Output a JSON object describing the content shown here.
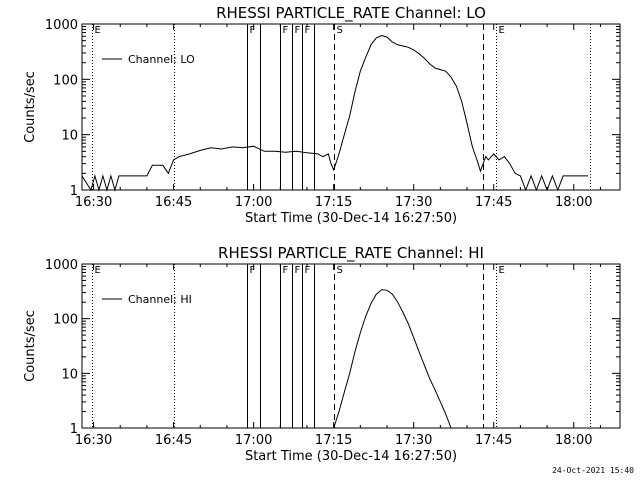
{
  "footer": {
    "generated": "24-Oct-2021 15:40"
  },
  "chart_data": [
    {
      "type": "line",
      "title": "RHESSI PARTICLE_RATE Channel: LO",
      "xlabel": "Start Time (30-Dec-14 16:27:50)",
      "ylabel": "Counts/sec",
      "yscale": "log",
      "xlim": [
        "16:27:50",
        "18:08:40"
      ],
      "ylim": [
        1,
        1000
      ],
      "x_ticks": [
        "16:30",
        "16:45",
        "17:00",
        "17:15",
        "17:30",
        "17:45",
        "18:00"
      ],
      "y_ticks": [
        "1",
        "10",
        "100",
        "1000"
      ],
      "legend": {
        "position": "top-left",
        "entries": [
          "Channel: LO"
        ]
      },
      "markers": [
        {
          "time": "16:29:45",
          "label": "E",
          "style": "dotted"
        },
        {
          "time": "16:45:00",
          "label": "",
          "style": "dotted"
        },
        {
          "time": "16:58:45",
          "label": "F",
          "style": "solid"
        },
        {
          "time": "17:01:15",
          "label": "",
          "style": "solid"
        },
        {
          "time": "17:05:00",
          "label": "F",
          "style": "solid"
        },
        {
          "time": "17:07:15",
          "label": "F",
          "style": "solid"
        },
        {
          "time": "17:09:00",
          "label": "F",
          "style": "solid"
        },
        {
          "time": "17:11:15",
          "label": "",
          "style": "solid"
        },
        {
          "time": "17:15:00",
          "label": "S",
          "style": "dashed"
        },
        {
          "time": "17:43:00",
          "label": "",
          "style": "dashed"
        },
        {
          "time": "17:45:30",
          "label": "E",
          "style": "dotted"
        },
        {
          "time": "18:03:00",
          "label": "",
          "style": "dotted"
        }
      ],
      "series": [
        {
          "name": "Channel: LO",
          "segments": [
            [
              [
                "16:27:50",
                1.8
              ],
              [
                "16:29:30",
                1.0
              ],
              [
                "16:30:15",
                1.8
              ],
              [
                "16:31:00",
                1.0
              ],
              [
                "16:31:45",
                1.8
              ],
              [
                "16:32:30",
                1.0
              ],
              [
                "16:33:15",
                1.8
              ],
              [
                "16:34:00",
                1.0
              ],
              [
                "16:34:45",
                1.8
              ],
              [
                "16:40:00",
                1.8
              ],
              [
                "16:41:00",
                2.8
              ],
              [
                "16:43:00",
                2.8
              ],
              [
                "16:44:00",
                2.0
              ],
              [
                "16:45:00",
                3.5
              ],
              [
                "16:46:00",
                4.0
              ],
              [
                "16:48:00",
                4.5
              ],
              [
                "16:50:00",
                5.2
              ],
              [
                "16:52:00",
                5.8
              ],
              [
                "16:54:00",
                5.5
              ],
              [
                "16:56:00",
                6.0
              ],
              [
                "16:58:00",
                5.8
              ],
              [
                "17:00:00",
                6.2
              ],
              [
                "17:02:00",
                5.0
              ],
              [
                "17:04:00",
                5.0
              ],
              [
                "17:06:00",
                4.8
              ],
              [
                "17:08:00",
                5.0
              ],
              [
                "17:10:00",
                4.7
              ],
              [
                "17:12:00",
                4.5
              ],
              [
                "17:13:00",
                4.0
              ],
              [
                "17:14:00",
                4.5
              ],
              [
                "17:14:30",
                3.0
              ],
              [
                "17:15:00",
                2.3
              ],
              [
                "17:16:00",
                4.5
              ],
              [
                "17:17:00",
                10
              ],
              [
                "17:18:00",
                22
              ],
              [
                "17:19:00",
                60
              ],
              [
                "17:20:00",
                140
              ],
              [
                "17:21:00",
                250
              ],
              [
                "17:22:00",
                420
              ],
              [
                "17:23:00",
                560
              ],
              [
                "17:24:00",
                620
              ],
              [
                "17:25:00",
                580
              ],
              [
                "17:26:00",
                470
              ],
              [
                "17:27:00",
                420
              ],
              [
                "17:28:00",
                400
              ],
              [
                "17:29:00",
                380
              ],
              [
                "17:30:00",
                340
              ],
              [
                "17:31:00",
                290
              ],
              [
                "17:32:00",
                240
              ],
              [
                "17:33:00",
                190
              ],
              [
                "17:34:00",
                160
              ],
              [
                "17:35:00",
                150
              ],
              [
                "17:36:00",
                140
              ],
              [
                "17:37:00",
                110
              ],
              [
                "17:38:00",
                75
              ],
              [
                "17:39:00",
                40
              ],
              [
                "17:40:00",
                16
              ],
              [
                "17:41:00",
                6
              ],
              [
                "17:42:00",
                3.2
              ],
              [
                "17:42:30",
                2.2
              ],
              [
                "17:43:30",
                4.0
              ],
              [
                "17:44:00",
                3.5
              ],
              [
                "17:45:00",
                4.5
              ],
              [
                "17:46:00",
                3.5
              ],
              [
                "17:47:00",
                4.0
              ],
              [
                "17:48:00",
                3.0
              ],
              [
                "17:49:00",
                2.0
              ],
              [
                "17:50:00",
                1.8
              ],
              [
                "17:51:00",
                1.0
              ],
              [
                "17:52:00",
                1.8
              ],
              [
                "17:53:00",
                1.0
              ],
              [
                "17:54:00",
                1.8
              ],
              [
                "17:55:00",
                1.0
              ],
              [
                "17:56:00",
                1.8
              ],
              [
                "17:57:00",
                1.0
              ],
              [
                "17:58:00",
                1.8
              ],
              [
                "18:02:40",
                1.8
              ]
            ]
          ]
        }
      ]
    },
    {
      "type": "line",
      "title": "RHESSI PARTICLE_RATE Channel: HI",
      "xlabel": "Start Time (30-Dec-14 16:27:50)",
      "ylabel": "Counts/sec",
      "yscale": "log",
      "xlim": [
        "16:27:50",
        "18:08:40"
      ],
      "ylim": [
        1,
        1000
      ],
      "x_ticks": [
        "16:30",
        "16:45",
        "17:00",
        "17:15",
        "17:30",
        "17:45",
        "18:00"
      ],
      "y_ticks": [
        "1",
        "10",
        "100",
        "1000"
      ],
      "legend": {
        "position": "top-left",
        "entries": [
          "Channel: HI"
        ]
      },
      "markers": [
        {
          "time": "16:29:45",
          "label": "E",
          "style": "dotted"
        },
        {
          "time": "16:45:00",
          "label": "",
          "style": "dotted"
        },
        {
          "time": "16:58:45",
          "label": "F",
          "style": "solid"
        },
        {
          "time": "17:01:15",
          "label": "",
          "style": "solid"
        },
        {
          "time": "17:05:00",
          "label": "F",
          "style": "solid"
        },
        {
          "time": "17:07:15",
          "label": "F",
          "style": "solid"
        },
        {
          "time": "17:09:00",
          "label": "F",
          "style": "solid"
        },
        {
          "time": "17:11:15",
          "label": "",
          "style": "solid"
        },
        {
          "time": "17:15:00",
          "label": "S",
          "style": "dashed"
        },
        {
          "time": "17:43:00",
          "label": "",
          "style": "dashed"
        },
        {
          "time": "17:45:30",
          "label": "E",
          "style": "dotted"
        },
        {
          "time": "18:03:00",
          "label": "",
          "style": "dotted"
        }
      ],
      "series": [
        {
          "name": "Channel: HI",
          "segments": [
            [
              [
                "17:15:00",
                1.0
              ],
              [
                "17:16:00",
                2.0
              ],
              [
                "17:17:00",
                4.5
              ],
              [
                "17:18:00",
                10
              ],
              [
                "17:19:00",
                25
              ],
              [
                "17:20:00",
                55
              ],
              [
                "17:21:00",
                110
              ],
              [
                "17:22:00",
                190
              ],
              [
                "17:23:00",
                280
              ],
              [
                "17:24:00",
                340
              ],
              [
                "17:25:00",
                330
              ],
              [
                "17:26:00",
                280
              ],
              [
                "17:27:00",
                200
              ],
              [
                "17:28:00",
                130
              ],
              [
                "17:29:00",
                80
              ],
              [
                "17:30:00",
                45
              ],
              [
                "17:31:00",
                25
              ],
              [
                "17:32:00",
                14
              ],
              [
                "17:33:00",
                8
              ],
              [
                "17:34:00",
                5
              ],
              [
                "17:35:00",
                3
              ],
              [
                "17:36:00",
                1.8
              ],
              [
                "17:37:00",
                1.0
              ]
            ]
          ]
        }
      ]
    }
  ]
}
